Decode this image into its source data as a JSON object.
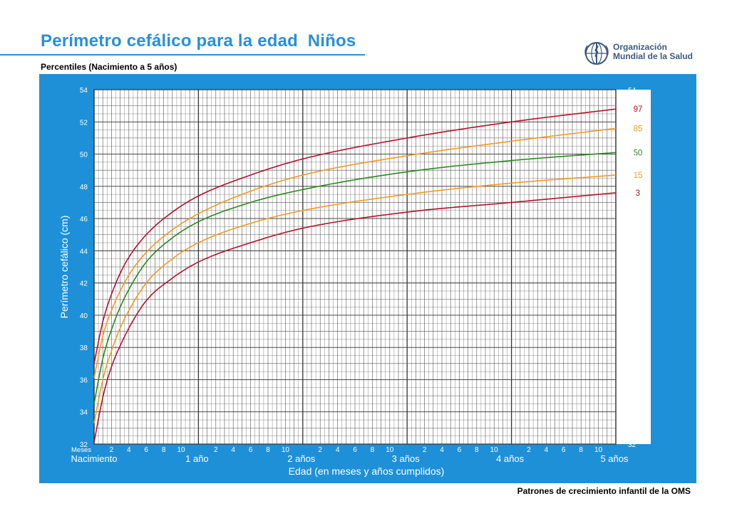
{
  "header": {
    "title": "Perímetro cefálico para la edad  Niños",
    "subtitle": "Percentiles (Nacimiento a 5 años)"
  },
  "logo": {
    "icon": "who-emblem-icon",
    "line1": "Organización",
    "line2": "Mundial de la Salud"
  },
  "footer": {
    "text": "Patrones de crecimiento infantil de la OMS"
  },
  "colors": {
    "panel": "#1e90d8",
    "grid": "#555555",
    "p97": "#b3122f",
    "p85": "#f39a1e",
    "p50": "#2b8a1e",
    "p15": "#f39a1e",
    "p3": "#b3122f",
    "axis_text": "#ffffff"
  },
  "chart_data": {
    "type": "line",
    "title": "Perímetro cefálico para la edad  Niños",
    "subtitle": "Percentiles (Nacimiento a 5 años)",
    "xlabel": "Edad (en meses y años cumplidos)",
    "ylabel": "Perímetro cefálico (cm)",
    "xlim": [
      0,
      60
    ],
    "ylim": [
      32,
      54
    ],
    "grid": true,
    "x_month_prefix": "Meses",
    "x_minor_tick_labels": [
      "2",
      "4",
      "6",
      "8",
      "10"
    ],
    "x_year_labels": [
      {
        "month": 0,
        "label": "Nacimiento"
      },
      {
        "month": 12,
        "label": "1 año"
      },
      {
        "month": 24,
        "label": "2 años"
      },
      {
        "month": 36,
        "label": "3 años"
      },
      {
        "month": 48,
        "label": "4 años"
      },
      {
        "month": 60,
        "label": "5 años"
      }
    ],
    "y_ticks": [
      32,
      34,
      36,
      38,
      40,
      42,
      44,
      46,
      48,
      50,
      52,
      54
    ],
    "x": [
      0,
      1,
      2,
      3,
      4,
      6,
      9,
      12,
      18,
      24,
      36,
      48,
      60
    ],
    "series": [
      {
        "name": "97",
        "color_key": "p97",
        "values": [
          37.0,
          39.6,
          41.3,
          42.6,
          43.6,
          45.0,
          46.4,
          47.4,
          48.7,
          49.7,
          51.0,
          52.0,
          52.8
        ]
      },
      {
        "name": "85",
        "color_key": "p85",
        "values": [
          36.1,
          38.7,
          40.3,
          41.5,
          42.5,
          43.9,
          45.3,
          46.3,
          47.7,
          48.7,
          49.9,
          50.8,
          51.6
        ]
      },
      {
        "name": "50",
        "color_key": "p50",
        "values": [
          34.5,
          37.3,
          39.1,
          40.5,
          41.6,
          43.3,
          44.8,
          45.8,
          47.0,
          47.8,
          48.9,
          49.6,
          50.1
        ]
      },
      {
        "name": "15",
        "color_key": "p15",
        "values": [
          33.3,
          36.0,
          37.8,
          39.2,
          40.3,
          42.0,
          43.5,
          44.5,
          45.7,
          46.5,
          47.5,
          48.2,
          48.7
        ]
      },
      {
        "name": "3",
        "color_key": "p3",
        "values": [
          32.1,
          34.9,
          36.8,
          38.1,
          39.2,
          40.9,
          42.3,
          43.3,
          44.5,
          45.4,
          46.4,
          47.0,
          47.6
        ]
      }
    ]
  }
}
